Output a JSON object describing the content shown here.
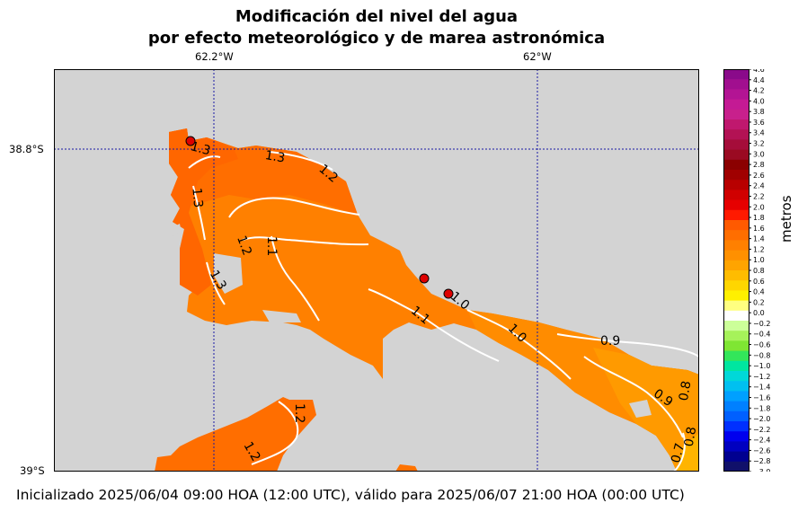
{
  "title_line1": "Modificación del nivel del agua",
  "title_line2": "por efecto meteorológico y de marea astronómica",
  "lon_labels": [
    "62.2°W",
    "62°W"
  ],
  "lat_labels": [
    "38.8°S",
    "39°S"
  ],
  "contour_labels": [
    "1.3",
    "1.3",
    "1.2",
    "1.3",
    "1.2",
    "1.1",
    "1.3",
    "1.1",
    "1.0",
    "1.0",
    "0.9",
    "0.9",
    "0.8",
    "0.7",
    "0.8",
    "1.2",
    "1.2"
  ],
  "colorbar": {
    "unit": "metros",
    "ticks": [
      "4.6",
      "4.4",
      "4.2",
      "4.0",
      "3.8",
      "3.6",
      "3.4",
      "3.2",
      "3.0",
      "2.8",
      "2.6",
      "2.4",
      "2.2",
      "2.0",
      "1.8",
      "1.6",
      "1.4",
      "1.2",
      "1.0",
      "0.8",
      "0.6",
      "0.4",
      "0.2",
      "0.0",
      "−0.2",
      "−0.4",
      "−0.6",
      "−0.8",
      "−1.0",
      "−1.2",
      "−1.4",
      "−1.6",
      "−1.8",
      "−2.0",
      "−2.2",
      "−2.4",
      "−2.6",
      "−2.8",
      "−3.0"
    ],
    "colors": [
      "#8a0a8a",
      "#a10f8f",
      "#b31494",
      "#c41a94",
      "#c8208c",
      "#c0186e",
      "#b31254",
      "#a50d3a",
      "#9a0a22",
      "#8b0000",
      "#a00000",
      "#b80000",
      "#d00000",
      "#e60000",
      "#ff1a00",
      "#ff5a00",
      "#ff6e00",
      "#ff8000",
      "#ff9000",
      "#ffa400",
      "#ffbc00",
      "#ffd600",
      "#fff000",
      "#ffff80",
      "#ffffff",
      "#ccff99",
      "#a6f25a",
      "#7fe633",
      "#33e65a",
      "#00e6a0",
      "#00d8d8",
      "#00c0f0",
      "#00a0ff",
      "#0080ff",
      "#0060ff",
      "#0030ff",
      "#0000ee",
      "#0000c0",
      "#000090",
      "#10106a"
    ]
  },
  "colors": {
    "land": "#d3d3d3",
    "water_13": "#ff6600",
    "water_12": "#ff7300",
    "water_11": "#ff8000",
    "water_10": "#ff8c00",
    "water_08": "#ffa500",
    "water_07": "#ffc020",
    "contour": "#ffffff",
    "station": "#dd0000",
    "grid": "#1a1aa6"
  },
  "footer": "Inicializado 2025/06/04 09:00 HOA (12:00 UTC), válido para 2025/06/07 21:00 HOA (00:00 UTC)"
}
